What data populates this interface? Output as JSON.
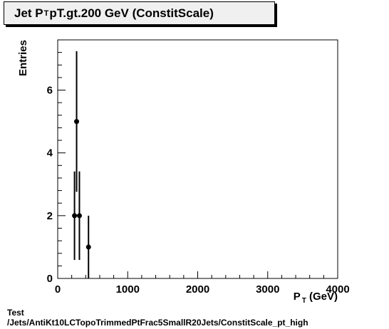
{
  "title": {
    "pre": "Jet P",
    "sub": "T",
    "post": " pT.gt.200 GeV (ConstitScale)"
  },
  "footer": {
    "line1": "Test",
    "line2": "/Jets/AntiKt10LCTopoTrimmedPtFrac5SmallR20Jets/ConstitScale_pt_high"
  },
  "chart_data": {
    "type": "scatter",
    "title": "Jet P_T pT.gt.200 GeV (ConstitScale)",
    "xlabel": {
      "main": "P",
      "sub": "T",
      "unit": " (GeV)"
    },
    "ylabel": "Entries",
    "xlim": [
      0,
      4000
    ],
    "ylim": [
      0,
      7.6
    ],
    "xticks": [
      0,
      1000,
      2000,
      3000,
      4000
    ],
    "yticks": [
      0,
      2,
      4,
      6
    ],
    "grid": false,
    "legend": "none",
    "points": [
      {
        "x": 240,
        "y": 2,
        "err": 1.41
      },
      {
        "x": 270,
        "y": 5,
        "err": 2.24
      },
      {
        "x": 310,
        "y": 2,
        "err": 1.41
      },
      {
        "x": 440,
        "y": 1,
        "err": 1.0
      }
    ]
  }
}
